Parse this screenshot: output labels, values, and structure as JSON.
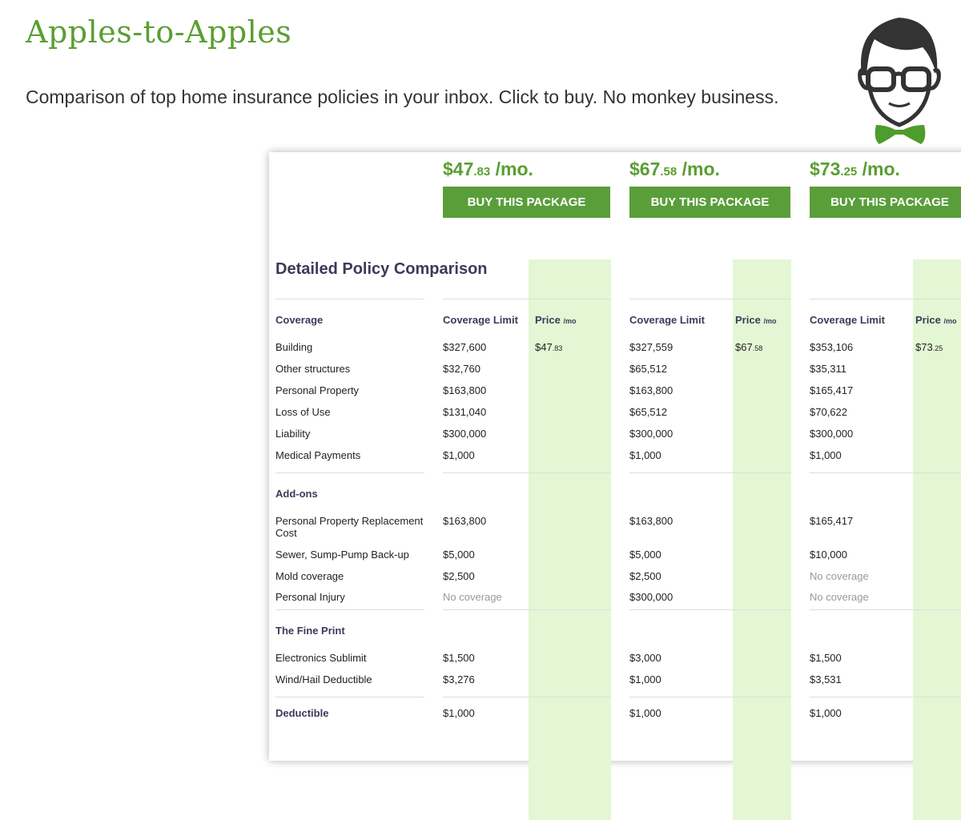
{
  "header": {
    "title": "Apples-to-Apples",
    "subtitle": "Comparison of top home insurance policies in your inbox. Click to buy. No monkey business."
  },
  "colors": {
    "brand_green": "#5a9e32",
    "band_green": "#e3f7d4",
    "heading": "#3b3a5a"
  },
  "mascot_icon": "nerd-with-glasses-and-bowtie",
  "plans": [
    {
      "price_dollars": "$47",
      "price_cents": ".83",
      "price_unit": " /mo.",
      "buy_label": "BUY THIS PACKAGE"
    },
    {
      "price_dollars": "$67",
      "price_cents": ".58",
      "price_unit": " /mo.",
      "buy_label": "BUY THIS PACKAGE"
    },
    {
      "price_dollars": "$73",
      "price_cents": ".25",
      "price_unit": " /mo.",
      "buy_label": "BUY THIS PACKAGE"
    }
  ],
  "table": {
    "heading": "Detailed Policy Comparison",
    "col_limit": "Coverage Limit",
    "col_price": "Price",
    "col_price_unit": "/mo",
    "rows": [
      {
        "type": "section",
        "label": "Coverage",
        "header": true
      },
      {
        "label": "Building",
        "values": [
          "$327,600",
          "$327,559",
          "$353,106"
        ],
        "prices": [
          [
            "$47",
            ".83"
          ],
          [
            "$67",
            ".58"
          ],
          [
            "$73",
            ".25"
          ]
        ]
      },
      {
        "label": "Other structures",
        "values": [
          "$32,760",
          "$65,512",
          "$35,311"
        ]
      },
      {
        "label": "Personal Property",
        "values": [
          "$163,800",
          "$163,800",
          "$165,417"
        ]
      },
      {
        "label": "Loss of Use",
        "values": [
          "$131,040",
          "$65,512",
          "$70,622"
        ]
      },
      {
        "label": "Liability",
        "values": [
          "$300,000",
          "$300,000",
          "$300,000"
        ]
      },
      {
        "label": "Medical Payments",
        "values": [
          "$1,000",
          "$1,000",
          "$1,000"
        ]
      },
      {
        "type": "section",
        "label": "Add-ons"
      },
      {
        "label": "Personal Property Replacement Cost",
        "values": [
          "$163,800",
          "$163,800",
          "$165,417"
        ]
      },
      {
        "label": "Sewer, Sump-Pump Back-up",
        "values": [
          "$5,000",
          "$5,000",
          "$10,000"
        ]
      },
      {
        "label": "Mold coverage",
        "values": [
          "$2,500",
          "$2,500",
          "No coverage"
        ]
      },
      {
        "label": "Personal Injury",
        "values": [
          "No coverage",
          "$300,000",
          "No coverage"
        ]
      },
      {
        "type": "section",
        "label": "The Fine Print"
      },
      {
        "label": "Electronics Sublimit",
        "values": [
          "$1,500",
          "$3,000",
          "$1,500"
        ]
      },
      {
        "label": "Wind/Hail Deductible",
        "values": [
          "$3,276",
          "$1,000",
          "$3,531"
        ]
      },
      {
        "type": "section",
        "label": "Deductible",
        "values": [
          "$1,000",
          "$1,000",
          "$1,000"
        ]
      }
    ]
  }
}
